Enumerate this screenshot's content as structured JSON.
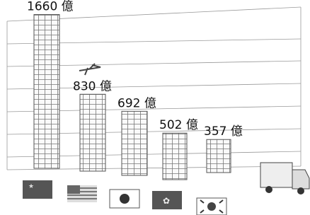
{
  "chart_data": {
    "type": "bar",
    "categories": [
      null,
      null,
      null,
      null,
      null
    ],
    "values": [
      1660,
      830,
      692,
      502,
      357
    ],
    "value_labels": [
      "1660 億",
      "830 億",
      "692 億",
      "502 億",
      "357 億"
    ]
  }
}
